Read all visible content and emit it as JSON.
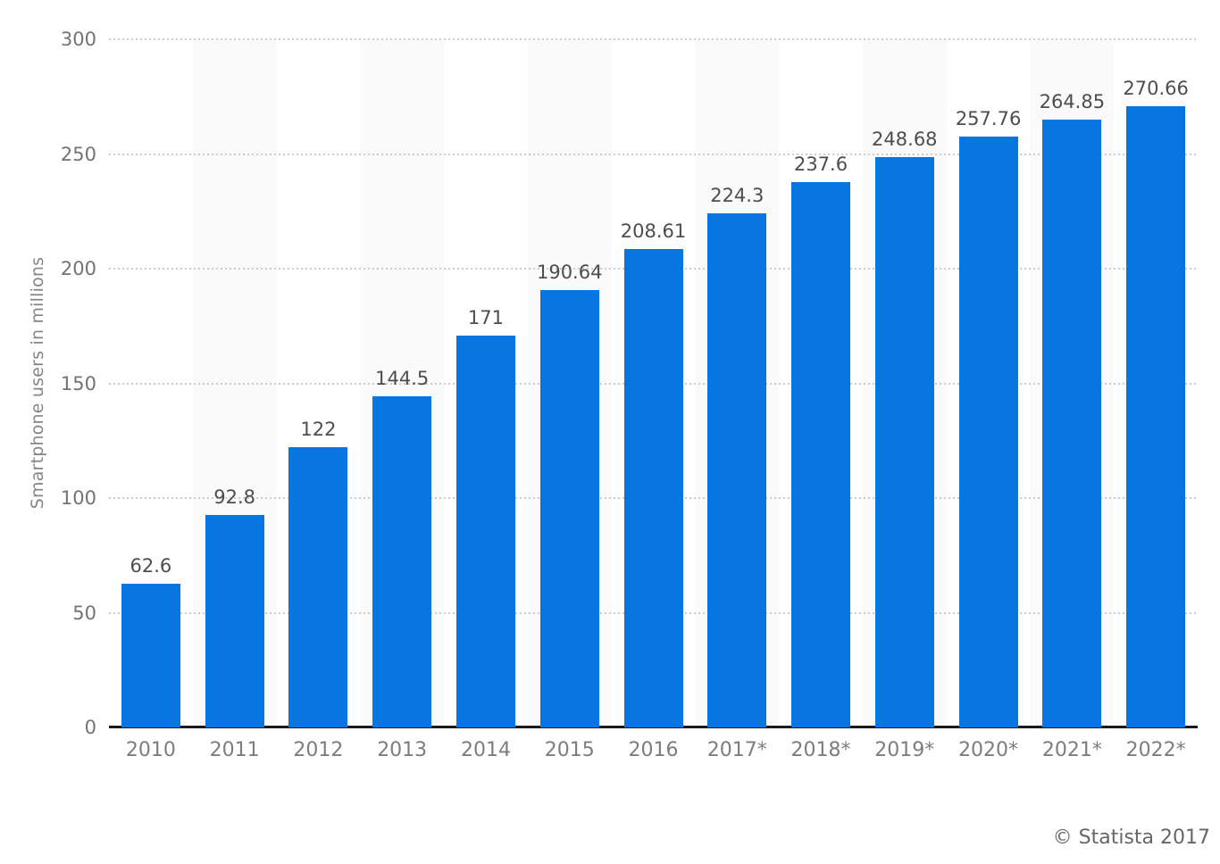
{
  "chart_data": {
    "type": "bar",
    "title": "",
    "categories": [
      "2010",
      "2011",
      "2012",
      "2013",
      "2014",
      "2015",
      "2016",
      "2017*",
      "2018*",
      "2019*",
      "2020*",
      "2021*",
      "2022*"
    ],
    "values": [
      62.6,
      92.8,
      122,
      144.5,
      171,
      190.64,
      208.61,
      224.3,
      237.6,
      248.68,
      257.76,
      264.85,
      270.66
    ],
    "value_labels": [
      "62.6",
      "92.8",
      "122",
      "144.5",
      "171",
      "190.64",
      "208.61",
      "224.3",
      "237.6",
      "248.68",
      "257.76",
      "264.85",
      "270.66"
    ],
    "xlabel": "",
    "ylabel": "Smartphone users in millions",
    "ylim": [
      0,
      300
    ],
    "yticks": [
      0,
      50,
      100,
      150,
      200,
      250,
      300
    ],
    "ytick_labels": [
      "0",
      "50",
      "100",
      "150",
      "200",
      "250",
      "300"
    ],
    "grid": "horizontal-dotted",
    "legend": "none",
    "banded_category_indexes": [
      1,
      3,
      5,
      7,
      9,
      11
    ]
  },
  "colors": {
    "bar": "#0876e1",
    "band": "#fafafa",
    "gridline": "#cccccc",
    "baseline": "#1a1a1a",
    "value_label": "#4d4d4d",
    "axis_label": "#737373",
    "x_label": "#7d7d7d",
    "axis_title": "#858585",
    "footer_text": "#666666",
    "background": "#ffffff"
  },
  "footer": {
    "copyright": "© Statista 2017"
  }
}
